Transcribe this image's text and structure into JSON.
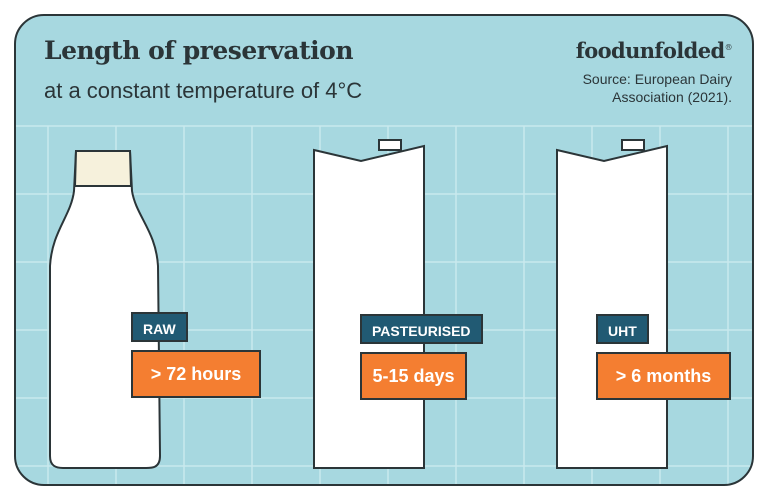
{
  "header": {
    "title": "Length of preservation",
    "subtitle": "at a constant temperature of 4°C"
  },
  "brand": {
    "logo_text": "foodunfolded",
    "mark": "®",
    "source_line1": "Source: European Dairy",
    "source_line2": "Association (2021)."
  },
  "items": [
    {
      "label": "RAW",
      "value": "> 72 hours",
      "container": "bottle-icon"
    },
    {
      "label": "PASTEURISED",
      "value": "5-15 days",
      "container": "carton-icon"
    },
    {
      "label": "UHT",
      "value": "> 6 months",
      "container": "carton-icon"
    }
  ],
  "colors": {
    "background": "#a7d8e0",
    "grid_lines": "#c9e9ee",
    "outline": "#2b3538",
    "label_bg": "#215a73",
    "value_bg": "#f47e31",
    "bottle_cap": "#f6f1dc",
    "container": "#ffffff"
  }
}
